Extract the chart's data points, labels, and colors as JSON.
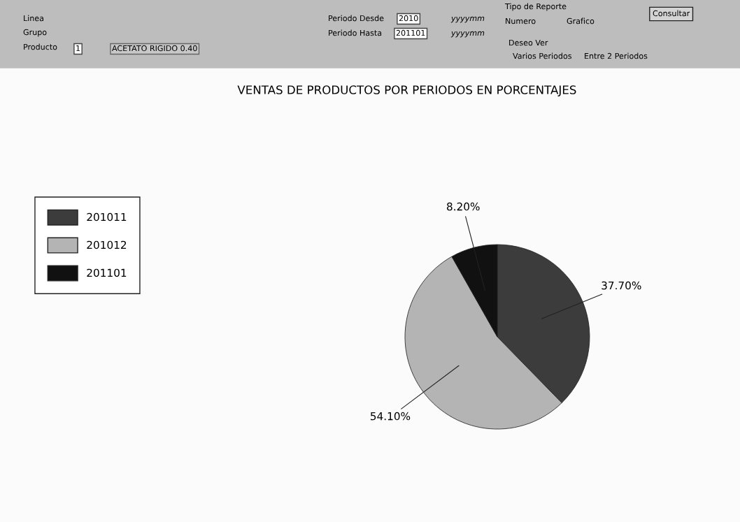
{
  "chart_data": {
    "type": "pie",
    "title": "VENTAS DE PRODUCTOS POR PERIODOS EN PORCENTAJES",
    "categories": [
      "201011",
      "201012",
      "201101"
    ],
    "values": [
      37.7,
      54.1,
      8.2
    ],
    "colors": [
      "#3c3c3c",
      "#b4b4b4",
      "#111111"
    ],
    "value_labels": [
      "37.70%",
      "54.10%",
      "8.20%"
    ],
    "legend": "left",
    "annotations": [
      "Linea",
      "Grupo",
      "Producto",
      "1",
      "ACETATO RIGIDO 0.40",
      "Periodo Desde",
      "2010",
      "yyyymm",
      "Periodo Hasta",
      "201101",
      "yyyymm",
      "Tipo de Reporte",
      "Numero",
      "Grafico",
      "Consultar",
      "Deseo Ver",
      "Varios Periodos",
      "Entre 2 Periodos"
    ]
  }
}
